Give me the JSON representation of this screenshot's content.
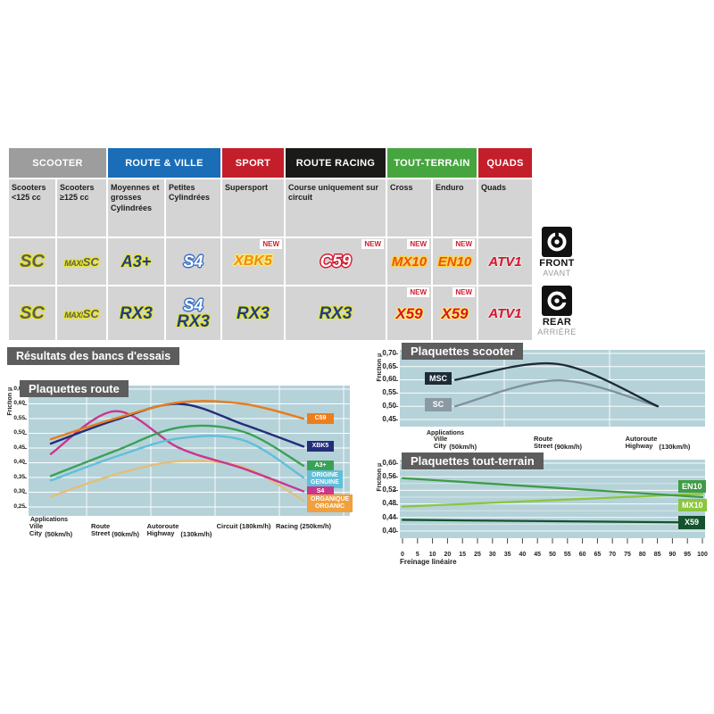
{
  "results_banner": "Résultats des bancs d'essais",
  "side_labels": {
    "front_en": "FRONT",
    "front_fr": "AVANT",
    "rear_en": "REAR",
    "rear_fr": "ARRIÈRE"
  },
  "table": {
    "new_label": "NEW",
    "headers": [
      {
        "label": "SCOOTER",
        "color": "#9d9d9d",
        "span": 2
      },
      {
        "label": "ROUTE & VILLE",
        "color": "#1a6db6",
        "span": 2
      },
      {
        "label": "SPORT",
        "color": "#c41e2a",
        "span": 1
      },
      {
        "label": "ROUTE RACING",
        "color": "#1a1a18",
        "span": 1
      },
      {
        "label": "TOUT-TERRAIN",
        "color": "#46a53f",
        "span": 2
      },
      {
        "label": "QUADS",
        "color": "#c41e2a",
        "span": 1
      }
    ],
    "subheaders": [
      "Scooters <125 cc",
      "Scooters ≥125 cc",
      "Moyennes et grosses Cylindrées",
      "Petites Cylindrées",
      "Supersport",
      "Course uniquement sur circuit",
      "Cross",
      "Enduro",
      "Quads"
    ],
    "front_row": [
      {
        "badges": [
          {
            "text": "SC",
            "style": "sc"
          }
        ],
        "new": false
      },
      {
        "badges": [
          {
            "text": "MAXI SC",
            "style": "maxisc"
          }
        ],
        "new": false
      },
      {
        "badges": [
          {
            "text": "A3+",
            "style": "a3"
          }
        ],
        "new": false
      },
      {
        "badges": [
          {
            "text": "S4",
            "style": "s4"
          }
        ],
        "new": false
      },
      {
        "badges": [
          {
            "text": "XBK5",
            "style": "xbk5"
          }
        ],
        "new": true
      },
      {
        "badges": [
          {
            "text": "C59",
            "style": "c59"
          }
        ],
        "new": true
      },
      {
        "badges": [
          {
            "text": "MX10",
            "style": "mx10"
          }
        ],
        "new": true
      },
      {
        "badges": [
          {
            "text": "EN10",
            "style": "en10"
          }
        ],
        "new": true
      },
      {
        "badges": [
          {
            "text": "ATV1",
            "style": "atv1"
          }
        ],
        "new": false
      }
    ],
    "rear_row": [
      {
        "badges": [
          {
            "text": "SC",
            "style": "sc"
          }
        ],
        "new": false
      },
      {
        "badges": [
          {
            "text": "MAXI SC",
            "style": "maxisc"
          }
        ],
        "new": false
      },
      {
        "badges": [
          {
            "text": "RX3",
            "style": "rx3"
          }
        ],
        "new": false
      },
      {
        "badges": [
          {
            "text": "S4",
            "style": "s4"
          },
          {
            "text": "RX3",
            "style": "rx3"
          }
        ],
        "new": false
      },
      {
        "badges": [
          {
            "text": "RX3",
            "style": "rx3"
          }
        ],
        "new": false
      },
      {
        "badges": [
          {
            "text": "RX3",
            "style": "rx3"
          }
        ],
        "new": false
      },
      {
        "badges": [
          {
            "text": "X59",
            "style": "x59"
          }
        ],
        "new": true
      },
      {
        "badges": [
          {
            "text": "X59",
            "style": "x59"
          }
        ],
        "new": true
      },
      {
        "badges": [
          {
            "text": "ATV1",
            "style": "atv1"
          }
        ],
        "new": false
      }
    ]
  },
  "chart_data": [
    {
      "id": "route",
      "type": "line",
      "title": "Plaquettes route",
      "ylabel": "Friction µ",
      "xlabel": "Applications",
      "plot_bg": "#b5d2d9",
      "ylim": [
        0.25,
        0.65
      ],
      "ytick_values": [
        0.65,
        0.6,
        0.55,
        0.5,
        0.45,
        0.4,
        0.35,
        0.3,
        0.25
      ],
      "ytick_labels": [
        "0,65",
        "0,60",
        "0,55",
        "0,50",
        "0,45",
        "0,40",
        "0,35",
        "0,30",
        "0,25"
      ],
      "categories": [
        {
          "line1": "Ville",
          "line2": "City",
          "speed": "(50km/h)"
        },
        {
          "line1": "Route",
          "line2": "Street",
          "speed": "(90km/h)"
        },
        {
          "line1": "Autoroute",
          "line2": "Highway",
          "speed": "(130km/h)"
        },
        {
          "line1": "Circuit (180km/h)",
          "line2": "",
          "speed": ""
        },
        {
          "line1": "Racing (250km/h)",
          "line2": "",
          "speed": ""
        }
      ],
      "series": [
        {
          "name": "C59",
          "color": "#e87c1e",
          "values": [
            0.48,
            0.55,
            0.605,
            0.6,
            0.55
          ],
          "badge": {
            "lines": [
              "C59"
            ],
            "bg": "#ef7d1a",
            "v": 0.55
          }
        },
        {
          "name": "XBK5",
          "color": "#232d7a",
          "values": [
            0.465,
            0.545,
            0.6,
            0.53,
            0.455
          ],
          "badge": {
            "lines": [
              "XBK5"
            ],
            "bg": "#232d7a",
            "v": 0.455
          }
        },
        {
          "name": "A3+",
          "color": "#3ba156",
          "values": [
            0.355,
            0.44,
            0.52,
            0.505,
            0.39
          ],
          "badge": {
            "lines": [
              "A3+"
            ],
            "bg": "#3ba156",
            "v": 0.39
          }
        },
        {
          "name": "ORIGINE GENUINE",
          "color": "#62bfd9",
          "values": [
            0.34,
            0.42,
            0.483,
            0.476,
            0.35
          ],
          "badge": {
            "lines": [
              "ORIGINE",
              "GENUINE"
            ],
            "bg": "#62bfd9",
            "v": 0.35
          }
        },
        {
          "name": "S4",
          "color": "#c9368f",
          "values": [
            0.43,
            0.575,
            0.45,
            0.38,
            0.303
          ],
          "badge": {
            "lines": [
              "S4"
            ],
            "bg": "#c9368f",
            "v": 0.303
          }
        },
        {
          "name": "ORGANIQUE ORGANIC",
          "color": "#e2bf7a",
          "values": [
            0.285,
            0.36,
            0.405,
            0.385,
            0.272
          ],
          "badge": {
            "lines": [
              "ORGANIQUE",
              "ORGANIC"
            ],
            "bg": "#f0a03c",
            "v": 0.268
          }
        }
      ]
    },
    {
      "id": "scooter",
      "type": "line",
      "title": "Plaquettes scooter",
      "ylabel": "Friction µ",
      "xlabel": "Applications",
      "plot_bg": "#b5d2d9",
      "ylim": [
        0.45,
        0.7
      ],
      "ytick_values": [
        0.7,
        0.65,
        0.6,
        0.55,
        0.5,
        0.45
      ],
      "ytick_labels": [
        "0,70",
        "0,65",
        "0,60",
        "0,55",
        "0,50",
        "0,45"
      ],
      "categories": [
        {
          "line1": "Ville",
          "line2": "City",
          "speed": "(50km/h)"
        },
        {
          "line1": "Route",
          "line2": "Street",
          "speed": "(90km/h)"
        },
        {
          "line1": "Autoroute",
          "line2": "Highway",
          "speed": "(130km/h)"
        }
      ],
      "series": [
        {
          "name": "MSC",
          "color": "#1d2b38",
          "values": [
            0.6,
            0.66,
            0.5
          ],
          "badge": {
            "lines": [
              "MSC"
            ],
            "bg": "#1d2b38",
            "v": 0.61
          }
        },
        {
          "name": "SC",
          "color": "#7d929e",
          "values": [
            0.5,
            0.598,
            0.5
          ],
          "badge": {
            "lines": [
              "SC"
            ],
            "bg": "#8a9aa4",
            "v": 0.51
          }
        }
      ]
    },
    {
      "id": "terrain",
      "type": "line",
      "title": "Plaquettes tout-terrain",
      "ylabel": "Friction µ",
      "xlabel": "Freinage linéaire",
      "plot_bg": "#b5d2d9",
      "ylim": [
        0.4,
        0.6
      ],
      "xlim": [
        0,
        100
      ],
      "ytick_values": [
        0.6,
        0.56,
        0.52,
        0.48,
        0.44,
        0.4
      ],
      "ytick_labels": [
        "0,60",
        "0,56",
        "0,52",
        "0,48",
        "0,44",
        "0,40"
      ],
      "ytick_minor": [
        0.58,
        0.54,
        0.5,
        0.46,
        0.42
      ],
      "xticks": [
        "0",
        "5",
        "10",
        "20",
        "15",
        "25",
        "30",
        "35",
        "40",
        "45",
        "50",
        "55",
        "60",
        "65",
        "70",
        "75",
        "80",
        "85",
        "90",
        "95",
        "100"
      ],
      "series": [
        {
          "name": "EN10",
          "color": "#3f9c46",
          "x": [
            0,
            100
          ],
          "values": [
            0.556,
            0.5
          ],
          "badge": {
            "lines": [
              "EN10"
            ],
            "bg": "#3f9c46",
            "v": 0.535
          }
        },
        {
          "name": "MX10",
          "color": "#8bc63e",
          "x": [
            0,
            100
          ],
          "values": [
            0.472,
            0.51
          ],
          "badge": {
            "lines": [
              "MX10"
            ],
            "bg": "#8bc63e",
            "v": 0.479
          }
        },
        {
          "name": "X59",
          "color": "#14532d",
          "x": [
            0,
            100
          ],
          "values": [
            0.433,
            0.425
          ],
          "badge": {
            "lines": [
              "X59"
            ],
            "bg": "#14532d",
            "v": 0.428
          }
        }
      ]
    }
  ]
}
